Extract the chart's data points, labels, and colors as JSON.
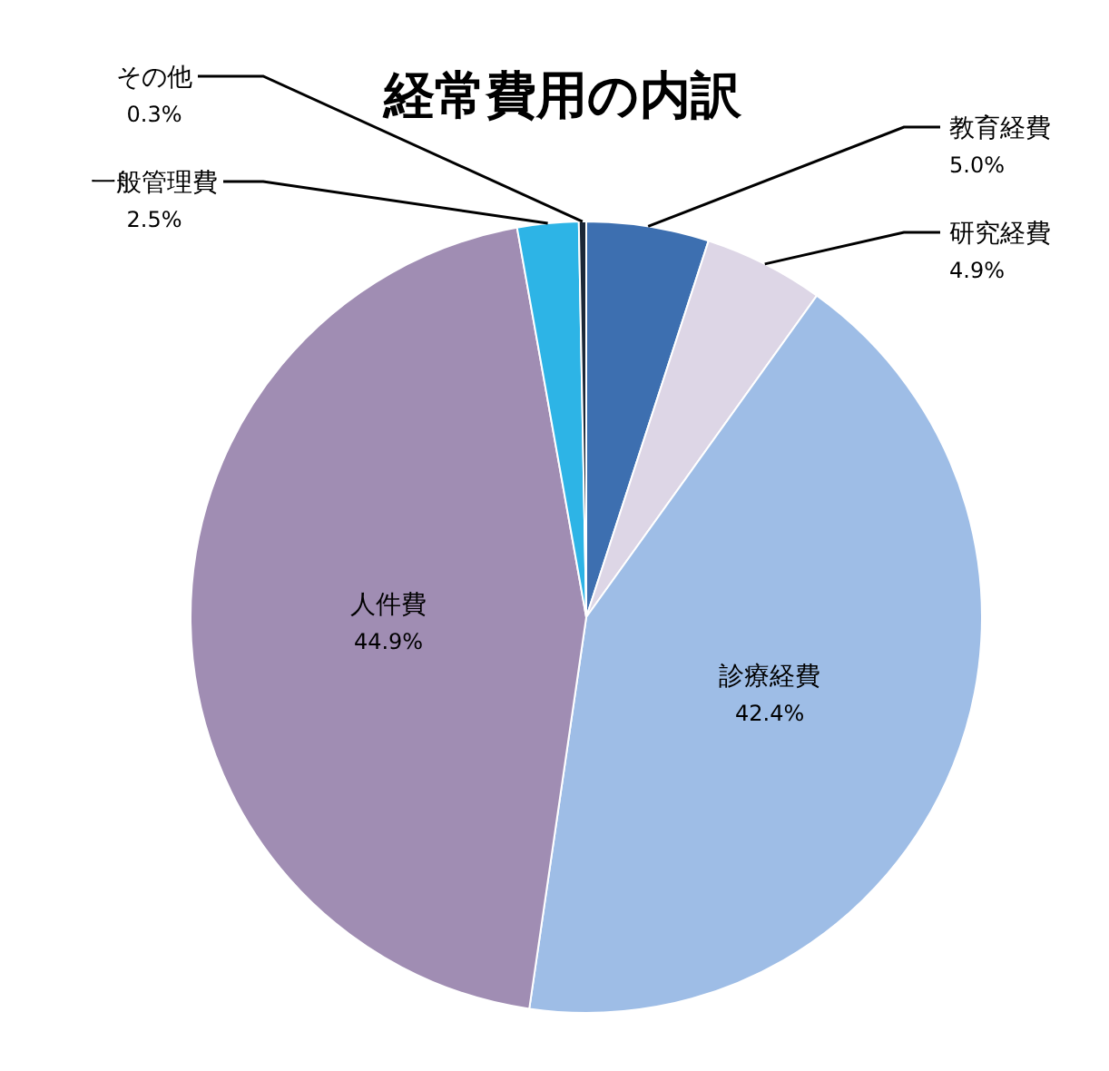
{
  "chart_data": {
    "type": "pie",
    "title": "経常費用の内訳",
    "categories": [
      "教育経費",
      "研究経費",
      "診療経費",
      "人件費",
      "一般管理費",
      "その他"
    ],
    "values": [
      5.0,
      4.9,
      42.4,
      44.9,
      2.5,
      0.3
    ],
    "colors": [
      "#3d6fb0",
      "#ddd6e6",
      "#9ebde6",
      "#a08db3",
      "#2db4e6",
      "#1c2838"
    ],
    "value_labels": [
      "5.0%",
      "4.9%",
      "42.4%",
      "44.9%",
      "2.5%",
      "0.3%"
    ]
  }
}
